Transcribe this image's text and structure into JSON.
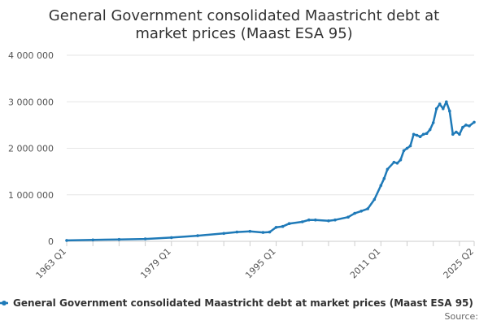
{
  "chart_data": {
    "type": "line",
    "title": [
      "General Government consolidated Maastricht debt at",
      "market prices (Maast ESA 95)"
    ],
    "xlabel": "",
    "ylabel": "",
    "ylim": [
      0,
      4000000
    ],
    "yticks": [
      0,
      1000000,
      2000000,
      3000000,
      4000000
    ],
    "ytick_labels": [
      "0",
      "1 000 000",
      "2 000 000",
      "3 000 000",
      "4 000 000"
    ],
    "x_start": "1963 Q1",
    "x_end": "2025 Q2",
    "xtick_labels": [
      "1963 Q1",
      "1979 Q1",
      "1995 Q1",
      "2011 Q1",
      "2025 Q2"
    ],
    "grid": true,
    "legend_position": "bottom",
    "colors": {
      "series": "#1f7ab8",
      "grid": "#e6e6e6",
      "axis": "#cccccc"
    },
    "series": [
      {
        "name": "General Government consolidated Maastricht debt at market prices (Maast ESA 95)",
        "points": [
          [
            "1963 Q1",
            20000
          ],
          [
            "1967 Q1",
            30000
          ],
          [
            "1971 Q1",
            40000
          ],
          [
            "1975 Q1",
            50000
          ],
          [
            "1979 Q1",
            80000
          ],
          [
            "1983 Q1",
            120000
          ],
          [
            "1987 Q1",
            170000
          ],
          [
            "1989 Q1",
            200000
          ],
          [
            "1991 Q1",
            215000
          ],
          [
            "1993 Q1",
            190000
          ],
          [
            "1994 Q1",
            200000
          ],
          [
            "1995 Q1",
            300000
          ],
          [
            "1996 Q1",
            320000
          ],
          [
            "1997 Q1",
            380000
          ],
          [
            "1999 Q1",
            420000
          ],
          [
            "2000 Q1",
            460000
          ],
          [
            "2001 Q1",
            460000
          ],
          [
            "2003 Q1",
            440000
          ],
          [
            "2004 Q1",
            460000
          ],
          [
            "2006 Q1",
            520000
          ],
          [
            "2007 Q1",
            600000
          ],
          [
            "2008 Q1",
            650000
          ],
          [
            "2009 Q1",
            700000
          ],
          [
            "2010 Q1",
            900000
          ],
          [
            "2011 Q1",
            1200000
          ],
          [
            "2011 Q3",
            1350000
          ],
          [
            "2012 Q1",
            1550000
          ],
          [
            "2013 Q1",
            1700000
          ],
          [
            "2013 Q3",
            1680000
          ],
          [
            "2014 Q1",
            1750000
          ],
          [
            "2014 Q3",
            1950000
          ],
          [
            "2015 Q1",
            2000000
          ],
          [
            "2015 Q3",
            2050000
          ],
          [
            "2016 Q1",
            2300000
          ],
          [
            "2016 Q3",
            2280000
          ],
          [
            "2017 Q1",
            2250000
          ],
          [
            "2017 Q3",
            2300000
          ],
          [
            "2018 Q1",
            2320000
          ],
          [
            "2018 Q3",
            2400000
          ],
          [
            "2019 Q1",
            2550000
          ],
          [
            "2019 Q3",
            2850000
          ],
          [
            "2020 Q1",
            2950000
          ],
          [
            "2020 Q3",
            2850000
          ],
          [
            "2021 Q1",
            3000000
          ],
          [
            "2021 Q3",
            2800000
          ],
          [
            "2022 Q1",
            2300000
          ],
          [
            "2022 Q3",
            2350000
          ],
          [
            "2023 Q1",
            2300000
          ],
          [
            "2023 Q3",
            2450000
          ],
          [
            "2024 Q1",
            2500000
          ],
          [
            "2024 Q3",
            2480000
          ],
          [
            "2025 Q2",
            2560000
          ]
        ]
      }
    ],
    "source_label": "Source:"
  }
}
